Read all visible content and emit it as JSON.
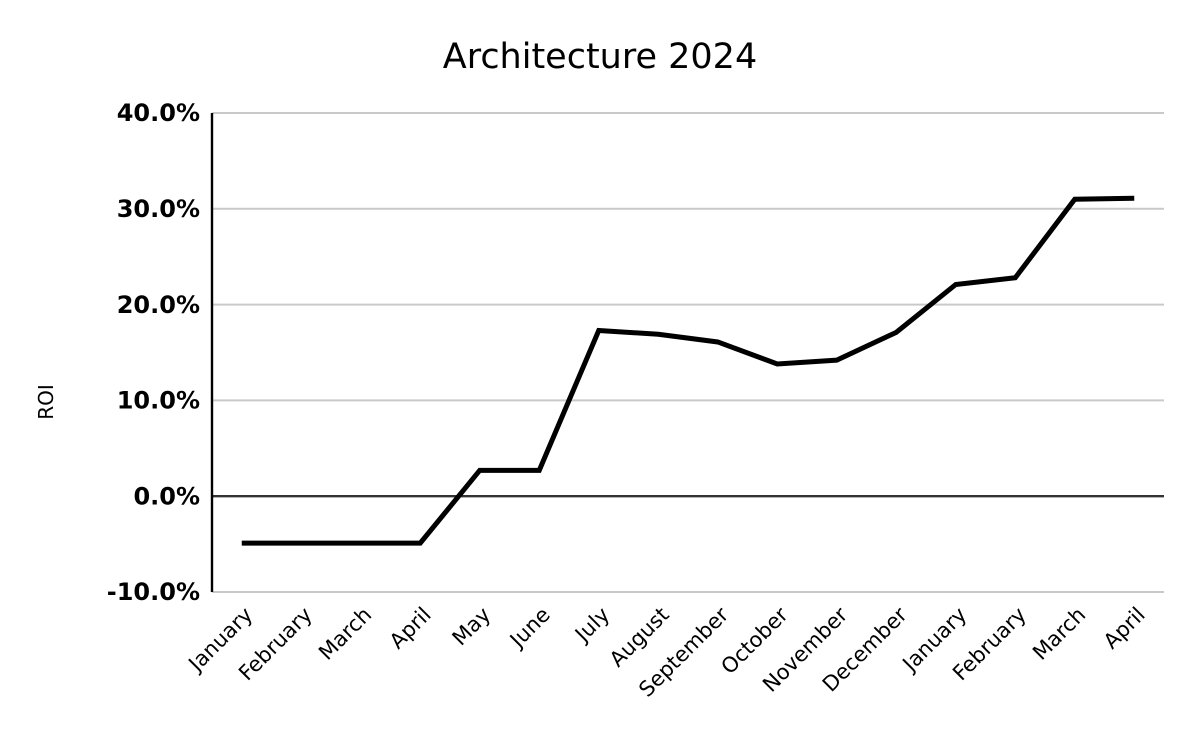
{
  "chart_data": {
    "type": "line",
    "title": "Architecture 2024",
    "ylabel": "ROI",
    "categories": [
      "January",
      "February",
      "March",
      "April",
      "May",
      "June",
      "July",
      "August",
      "September",
      "October",
      "November",
      "December",
      "January",
      "February",
      "March",
      "April"
    ],
    "series": [
      {
        "name": "ROI",
        "values": [
          -4.9,
          -4.9,
          -4.9,
          -4.9,
          2.7,
          2.7,
          17.3,
          16.9,
          16.1,
          13.8,
          14.2,
          17.1,
          22.1,
          22.8,
          31.0,
          31.1
        ]
      }
    ],
    "ylim": [
      -10,
      40
    ],
    "yticks": [
      40,
      30,
      20,
      10,
      0,
      -10
    ],
    "ytick_labels": [
      "40.0%",
      "30.0%",
      "20.0%",
      "10.0%",
      "0.0%",
      "-10.0%"
    ],
    "grid": true,
    "legend_position": "none",
    "colors": {
      "line": "#000000",
      "gridline": "#c9c9c9",
      "zero_line": "#333333",
      "axis": "#000000",
      "text": "#000000",
      "background": "#ffffff"
    }
  }
}
